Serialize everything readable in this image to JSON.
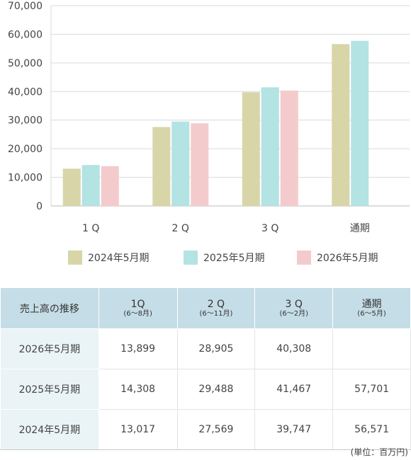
{
  "chart_data": {
    "type": "bar",
    "categories": [
      "1Q",
      "2Q",
      "3Q",
      "通期"
    ],
    "series": [
      {
        "name": "2024年5月期",
        "color": "#d8d5a8",
        "values": [
          13017,
          27569,
          39747,
          56571
        ]
      },
      {
        "name": "2025年5月期",
        "color": "#b3e3e3",
        "values": [
          14308,
          29488,
          41467,
          57701
        ]
      },
      {
        "name": "2026年5月期",
        "color": "#f4cbcc",
        "values": [
          13899,
          28905,
          40308,
          null
        ]
      }
    ],
    "y_ticks": [
      "0",
      "10,000",
      "20,000",
      "30,000",
      "40,000",
      "50,000",
      "60,000",
      "70,000"
    ],
    "ylim": [
      0,
      70000
    ],
    "grid": true,
    "legend_position": "bottom"
  },
  "x_labels": [
    "1 Q",
    "2 Q",
    "3 Q",
    "通期"
  ],
  "legend": [
    {
      "label": "2024年5月期",
      "color": "#d8d5a8"
    },
    {
      "label": "2025年5月期",
      "color": "#b3e3e3"
    },
    {
      "label": "2026年5月期",
      "color": "#f4cbcc"
    }
  ],
  "table": {
    "corner": "売上高の推移",
    "columns": [
      {
        "main": "1Q",
        "sub": "(6～8月)"
      },
      {
        "main": "2 Q",
        "sub": "(6～11月)"
      },
      {
        "main": "3 Q",
        "sub": "(6～2月)"
      },
      {
        "main": "通期",
        "sub": "(6～5月)"
      }
    ],
    "rows": [
      {
        "label": "2026年5月期",
        "cells": [
          "13,899",
          "28,905",
          "40,308",
          ""
        ]
      },
      {
        "label": "2025年5月期",
        "cells": [
          "14,308",
          "29,488",
          "41,467",
          "57,701"
        ]
      },
      {
        "label": "2024年5月期",
        "cells": [
          "13,017",
          "27,569",
          "39,747",
          "56,571"
        ]
      }
    ]
  },
  "unit_note": "(単位：百万円)"
}
